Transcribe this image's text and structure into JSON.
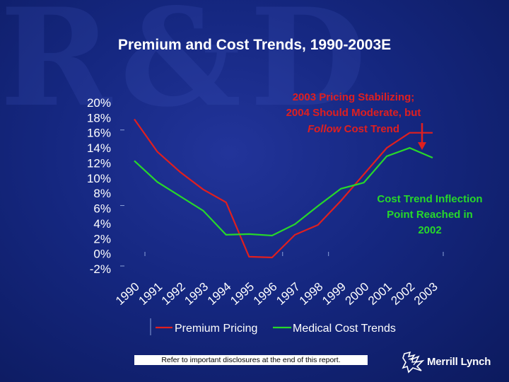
{
  "slide": {
    "title": "Premium and Cost Trends, 1990-2003E",
    "disclaimer": "Refer to important disclosures at the end of this report.",
    "brand": "Merrill Lynch",
    "watermark": "R&D"
  },
  "colors": {
    "premium": "#e01f1f",
    "medical": "#27d82a",
    "text": "#ffffff",
    "annotation_red": "#e01f1f"
  },
  "chart_data": {
    "type": "line",
    "title": "Premium and Cost Trends, 1990-2003E",
    "xlabel": "",
    "ylabel": "",
    "categories": [
      "1990",
      "1991",
      "1992",
      "1993",
      "1994",
      "1995",
      "1996",
      "1997",
      "1998",
      "1999",
      "2000",
      "2001",
      "2002",
      "2003"
    ],
    "ylim": [
      -2,
      20
    ],
    "yticks": [
      "20%",
      "18%",
      "16%",
      "14%",
      "12%",
      "10%",
      "8%",
      "6%",
      "4%",
      "2%",
      "0%",
      "-2%"
    ],
    "ytick_values": [
      20,
      18,
      16,
      14,
      12,
      10,
      8,
      6,
      4,
      2,
      0,
      -2
    ],
    "series": [
      {
        "name": "Premium Pricing",
        "values": [
          17.8,
          13.5,
          10.8,
          8.5,
          6.8,
          -0.4,
          -0.5,
          2.5,
          3.8,
          7.0,
          10.5,
          14.0,
          16.0,
          16.0
        ]
      },
      {
        "name": "Medical Cost Trends",
        "values": [
          12.3,
          9.5,
          7.6,
          5.7,
          2.5,
          2.6,
          2.4,
          3.9,
          6.3,
          8.6,
          9.4,
          12.9,
          14.0,
          12.7
        ]
      }
    ],
    "annotations": [
      {
        "lines": [
          "2003 Pricing Stabilizing;",
          "2004 Should Moderate, but",
          "Follow Cost Trend"
        ],
        "italic_word": "Follow",
        "color": "red"
      },
      {
        "lines": [
          "Cost Trend Inflection",
          "Point Reached in",
          "2002"
        ],
        "color": "green"
      }
    ],
    "legend": "bottom-center"
  }
}
